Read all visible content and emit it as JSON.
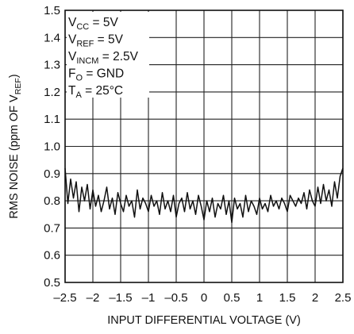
{
  "chart_data": {
    "type": "line",
    "title": "",
    "xlabel": "INPUT DIFFERENTIAL VOLTAGE (V)",
    "ylabel_prefix": "RMS NOISE (ppm OF V",
    "ylabel_sub": "REF",
    "ylabel_suffix": ")",
    "xlim": [
      -2.5,
      2.5
    ],
    "ylim": [
      0.5,
      1.5
    ],
    "xticks": [
      -2.5,
      -2,
      -1.5,
      -1,
      -0.5,
      0,
      0.5,
      1,
      1.5,
      2,
      2.5
    ],
    "xtick_labels": [
      "–2.5",
      "–2",
      "–1.5",
      "–1",
      "–0.5",
      "0",
      "0.5",
      "1",
      "1.5",
      "2",
      "2.5"
    ],
    "yticks": [
      0.5,
      0.6,
      0.7,
      0.8,
      0.9,
      1.0,
      1.1,
      1.2,
      1.3,
      1.4,
      1.5
    ],
    "ytick_labels": [
      "0.5",
      "0.6",
      "0.7",
      "0.8",
      "0.9",
      "1.0",
      "1.1",
      "1.2",
      "1.3",
      "1.4",
      "1.5"
    ],
    "grid": true,
    "series": [
      {
        "x": [
          -2.5,
          -2.45,
          -2.4,
          -2.35,
          -2.3,
          -2.25,
          -2.2,
          -2.15,
          -2.1,
          -2.05,
          -2.0,
          -1.95,
          -1.9,
          -1.85,
          -1.8,
          -1.75,
          -1.7,
          -1.65,
          -1.6,
          -1.55,
          -1.5,
          -1.45,
          -1.4,
          -1.35,
          -1.3,
          -1.25,
          -1.2,
          -1.15,
          -1.1,
          -1.05,
          -1.0,
          -0.95,
          -0.9,
          -0.85,
          -0.8,
          -0.75,
          -0.7,
          -0.65,
          -0.6,
          -0.55,
          -0.5,
          -0.45,
          -0.4,
          -0.35,
          -0.3,
          -0.25,
          -0.2,
          -0.15,
          -0.1,
          -0.05,
          0.0,
          0.05,
          0.1,
          0.15,
          0.2,
          0.25,
          0.3,
          0.35,
          0.4,
          0.45,
          0.5,
          0.55,
          0.6,
          0.65,
          0.7,
          0.75,
          0.8,
          0.85,
          0.9,
          0.95,
          1.0,
          1.05,
          1.1,
          1.15,
          1.2,
          1.25,
          1.3,
          1.35,
          1.4,
          1.45,
          1.5,
          1.55,
          1.6,
          1.65,
          1.7,
          1.75,
          1.8,
          1.85,
          1.9,
          1.95,
          2.0,
          2.05,
          2.1,
          2.15,
          2.2,
          2.25,
          2.3,
          2.35,
          2.4,
          2.45,
          2.5
        ],
        "y": [
          0.92,
          0.79,
          0.88,
          0.81,
          0.87,
          0.76,
          0.85,
          0.8,
          0.86,
          0.77,
          0.84,
          0.78,
          0.82,
          0.76,
          0.8,
          0.85,
          0.77,
          0.81,
          0.75,
          0.83,
          0.79,
          0.76,
          0.82,
          0.78,
          0.8,
          0.74,
          0.84,
          0.77,
          0.81,
          0.79,
          0.76,
          0.82,
          0.78,
          0.8,
          0.75,
          0.83,
          0.77,
          0.8,
          0.76,
          0.82,
          0.74,
          0.79,
          0.81,
          0.76,
          0.83,
          0.77,
          0.8,
          0.75,
          0.82,
          0.78,
          0.73,
          0.8,
          0.76,
          0.81,
          0.74,
          0.79,
          0.77,
          0.82,
          0.75,
          0.8,
          0.72,
          0.81,
          0.77,
          0.79,
          0.74,
          0.82,
          0.76,
          0.8,
          0.78,
          0.75,
          0.81,
          0.77,
          0.79,
          0.76,
          0.82,
          0.78,
          0.8,
          0.77,
          0.81,
          0.79,
          0.76,
          0.82,
          0.8,
          0.78,
          0.81,
          0.79,
          0.83,
          0.77,
          0.84,
          0.8,
          0.78,
          0.85,
          0.79,
          0.86,
          0.8,
          0.84,
          0.78,
          0.87,
          0.81,
          0.89,
          0.92
        ]
      }
    ],
    "annotations": [
      {
        "main": "V",
        "sub": "CC",
        "rest": " = 5V"
      },
      {
        "main": "V",
        "sub": "REF",
        "rest": " = 5V"
      },
      {
        "main": "V",
        "sub": "INCM",
        "rest": " = 2.5V"
      },
      {
        "main": "F",
        "sub": "O",
        "rest": " = GND"
      },
      {
        "main": "T",
        "sub": "A",
        "rest": " = 25°C"
      }
    ]
  }
}
